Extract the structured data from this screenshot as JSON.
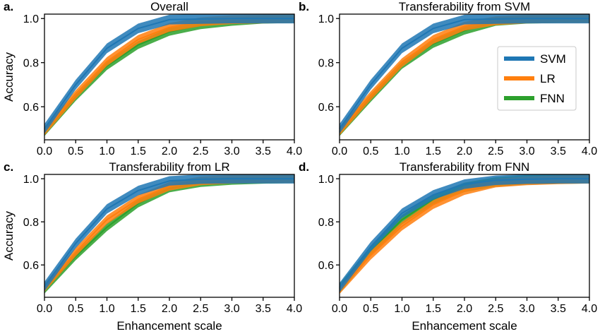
{
  "colors": {
    "SVM": "#1f77b4",
    "LR": "#ff7f0e",
    "FNN": "#2ca02c"
  },
  "legend": {
    "location": "upper-right of panel b",
    "entries": [
      "SVM",
      "LR",
      "FNN"
    ]
  },
  "chart_data": [
    {
      "type": "line",
      "letter": "a.",
      "title": "Overall",
      "xlabel": "",
      "ylabel": "Accuracy",
      "xlim": [
        0,
        4
      ],
      "ylim": [
        0.45,
        1.02
      ],
      "x": [
        0,
        0.5,
        1.0,
        1.5,
        2.0,
        2.5,
        3.0,
        3.5,
        4.0
      ],
      "xticklabels": [
        "0.0",
        "0.5",
        "1.0",
        "1.5",
        "2.0",
        "2.5",
        "3.0",
        "3.5",
        "4.0"
      ],
      "yticks": [
        0.6,
        0.8,
        1.0
      ],
      "yticklabels": [
        "0.6",
        "0.8",
        "1.0"
      ],
      "series": [
        {
          "name": "SVM",
          "values": [
            0.5,
            0.7,
            0.865,
            0.955,
            0.995,
            0.998,
            1.0,
            1.0,
            1.0
          ],
          "band": 0.022
        },
        {
          "name": "LR",
          "values": [
            0.49,
            0.655,
            0.805,
            0.905,
            0.96,
            0.985,
            0.995,
            0.998,
            1.0
          ],
          "band": 0.02
        },
        {
          "name": "FNN",
          "values": [
            0.485,
            0.645,
            0.785,
            0.88,
            0.94,
            0.97,
            0.985,
            0.995,
            0.998
          ],
          "band": 0.018
        }
      ]
    },
    {
      "type": "line",
      "letter": "b.",
      "title": "Transferability from SVM",
      "xlabel": "",
      "ylabel": "",
      "xlim": [
        0,
        4
      ],
      "ylim": [
        0.45,
        1.02
      ],
      "x": [
        0,
        0.5,
        1.0,
        1.5,
        2.0,
        2.5,
        3.0,
        3.5,
        4.0
      ],
      "xticklabels": [
        "0.0",
        "0.5",
        "1.0",
        "1.5",
        "2.0",
        "2.5",
        "3.0",
        "3.5",
        "4.0"
      ],
      "yticks": [
        0.6,
        0.8,
        1.0
      ],
      "yticklabels": [
        "0.6",
        "0.8",
        "1.0"
      ],
      "series": [
        {
          "name": "SVM",
          "values": [
            0.5,
            0.7,
            0.865,
            0.955,
            0.995,
            0.998,
            1.0,
            1.0,
            1.0
          ],
          "band": 0.022
        },
        {
          "name": "LR",
          "values": [
            0.49,
            0.65,
            0.8,
            0.905,
            0.965,
            0.99,
            0.998,
            1.0,
            1.0
          ],
          "band": 0.02
        },
        {
          "name": "FNN",
          "values": [
            0.485,
            0.64,
            0.79,
            0.885,
            0.945,
            0.985,
            0.995,
            0.998,
            1.0
          ],
          "band": 0.018
        }
      ]
    },
    {
      "type": "line",
      "letter": "c.",
      "title": "Transferability from LR",
      "xlabel": "Enhancement scale",
      "ylabel": "Accuracy",
      "xlim": [
        0,
        4
      ],
      "ylim": [
        0.45,
        1.02
      ],
      "x": [
        0,
        0.5,
        1.0,
        1.5,
        2.0,
        2.5,
        3.0,
        3.5,
        4.0
      ],
      "xticklabels": [
        "0.0",
        "0.5",
        "1.0",
        "1.5",
        "2.0",
        "2.5",
        "3.0",
        "3.5",
        "4.0"
      ],
      "yticks": [
        0.6,
        0.8,
        1.0
      ],
      "yticklabels": [
        "0.6",
        "0.8",
        "1.0"
      ],
      "series": [
        {
          "name": "SVM",
          "values": [
            0.5,
            0.7,
            0.86,
            0.945,
            0.99,
            0.998,
            1.0,
            1.0,
            1.0
          ],
          "band": 0.022
        },
        {
          "name": "LR",
          "values": [
            0.495,
            0.66,
            0.81,
            0.905,
            0.965,
            0.99,
            0.998,
            1.0,
            1.0
          ],
          "band": 0.02
        },
        {
          "name": "FNN",
          "values": [
            0.485,
            0.64,
            0.775,
            0.885,
            0.955,
            0.98,
            0.99,
            0.995,
            0.998
          ],
          "band": 0.018
        }
      ]
    },
    {
      "type": "line",
      "letter": "d.",
      "title": "Transferability from FNN",
      "xlabel": "Enhancement scale",
      "ylabel": "",
      "xlim": [
        0,
        4
      ],
      "ylim": [
        0.45,
        1.02
      ],
      "x": [
        0,
        0.5,
        1.0,
        1.5,
        2.0,
        2.5,
        3.0,
        3.5,
        4.0
      ],
      "xticklabels": [
        "0.0",
        "0.5",
        "1.0",
        "1.5",
        "2.0",
        "2.5",
        "3.0",
        "3.5",
        "4.0"
      ],
      "yticks": [
        0.6,
        0.8,
        1.0
      ],
      "yticklabels": [
        "0.6",
        "0.8",
        "1.0"
      ],
      "series": [
        {
          "name": "SVM",
          "values": [
            0.495,
            0.685,
            0.84,
            0.925,
            0.975,
            0.993,
            0.998,
            1.0,
            1.0
          ],
          "band": 0.022
        },
        {
          "name": "LR",
          "values": [
            0.485,
            0.645,
            0.78,
            0.88,
            0.945,
            0.98,
            0.99,
            0.995,
            0.998
          ],
          "band": 0.02
        },
        {
          "name": "FNN",
          "values": [
            0.49,
            0.665,
            0.81,
            0.905,
            0.96,
            0.985,
            0.995,
            0.998,
            1.0
          ],
          "band": 0.022
        }
      ]
    }
  ]
}
